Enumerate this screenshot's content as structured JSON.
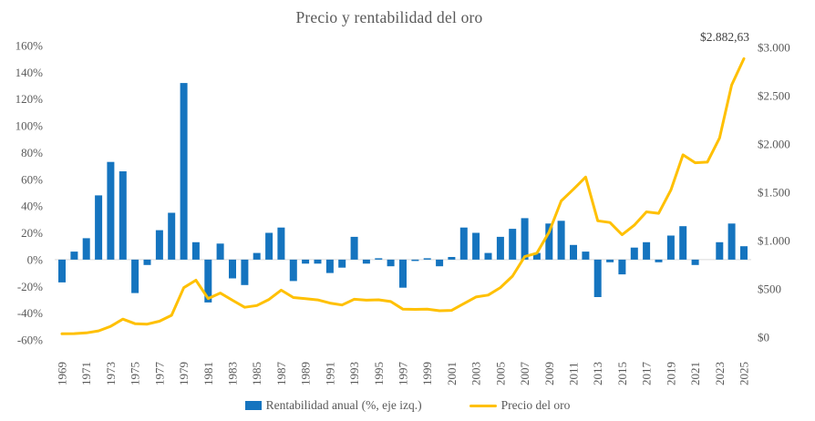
{
  "chart_data": {
    "type": "bar",
    "combo": "bar+line dual axis",
    "title": "Precio y rentabilidad del oro",
    "annotation": "$2.882,63",
    "categories": [
      1969,
      1970,
      1971,
      1972,
      1973,
      1974,
      1975,
      1976,
      1977,
      1978,
      1979,
      1980,
      1981,
      1982,
      1983,
      1984,
      1985,
      1986,
      1987,
      1988,
      1989,
      1990,
      1991,
      1992,
      1993,
      1994,
      1995,
      1996,
      1997,
      1998,
      1999,
      2000,
      2001,
      2002,
      2003,
      2004,
      2005,
      2006,
      2007,
      2008,
      2009,
      2010,
      2011,
      2012,
      2013,
      2014,
      2015,
      2016,
      2017,
      2018,
      2019,
      2020,
      2021,
      2022,
      2023,
      2024,
      2025
    ],
    "series": [
      {
        "name": "Rentabilidad anual (%, eje izq.)",
        "type": "bar",
        "axis": "left",
        "unit": "%",
        "color": "#1574BF",
        "values": [
          -17,
          6,
          16,
          48,
          73,
          66,
          -25,
          -4,
          22,
          35,
          132,
          13,
          -32,
          12,
          -14,
          -19,
          5,
          20,
          24,
          -16,
          -3,
          -3,
          -10,
          -6,
          17,
          -3,
          1,
          -5,
          -21,
          -1,
          1,
          -5,
          2,
          24,
          20,
          5,
          17,
          23,
          31,
          5,
          27,
          29,
          11,
          6,
          -28,
          -2,
          -11,
          9,
          13,
          -2,
          18,
          25,
          -4,
          0,
          13,
          27,
          10
        ]
      },
      {
        "name": "Precio del oro",
        "type": "line",
        "axis": "right",
        "unit": "$",
        "color": "#FFC000",
        "values": [
          35,
          37,
          44,
          65,
          112,
          187,
          140,
          135,
          165,
          226,
          512,
          590,
          400,
          457,
          382,
          309,
          327,
          391,
          487,
          410,
          399,
          386,
          353,
          333,
          392,
          383,
          387,
          369,
          290,
          288,
          290,
          274,
          277,
          347,
          416,
          436,
          513,
          632,
          834,
          870,
          1088,
          1410,
          1531,
          1658,
          1205,
          1187,
          1060,
          1159,
          1297,
          1282,
          1523,
          1888,
          1806,
          1812,
          2062,
          2611,
          2882.63
        ]
      }
    ],
    "left_axis": {
      "min": -60,
      "max": 160,
      "tick_values": [
        160,
        140,
        120,
        100,
        80,
        60,
        40,
        20,
        0,
        -20,
        -40,
        -60
      ],
      "tick_labels": [
        "160%",
        "140%",
        "120%",
        "100%",
        "80%",
        "60%",
        "40%",
        "20%",
        "0%",
        "-20%",
        "-40%",
        "-60%"
      ]
    },
    "right_axis": {
      "min": 0,
      "max": 3000,
      "tick_values": [
        3000,
        2500,
        2000,
        1500,
        1000,
        500,
        0
      ],
      "tick_labels": [
        "$3.000",
        "$2.500",
        "$2.000",
        "$1.500",
        "$1.000",
        "$500",
        "$0"
      ]
    },
    "x_tick_labels": [
      "1969",
      "1971",
      "1973",
      "1975",
      "1977",
      "1979",
      "1981",
      "1983",
      "1985",
      "1987",
      "1989",
      "1991",
      "1993",
      "1995",
      "1997",
      "1999",
      "2001",
      "2003",
      "2005",
      "2007",
      "2009",
      "2011",
      "2013",
      "2015",
      "2017",
      "2019",
      "2021",
      "2023",
      "2025"
    ],
    "grid": "zero-line-only",
    "zero_line_color": "#D9D9D9",
    "legend_position": "bottom",
    "text_color": "#595959"
  }
}
